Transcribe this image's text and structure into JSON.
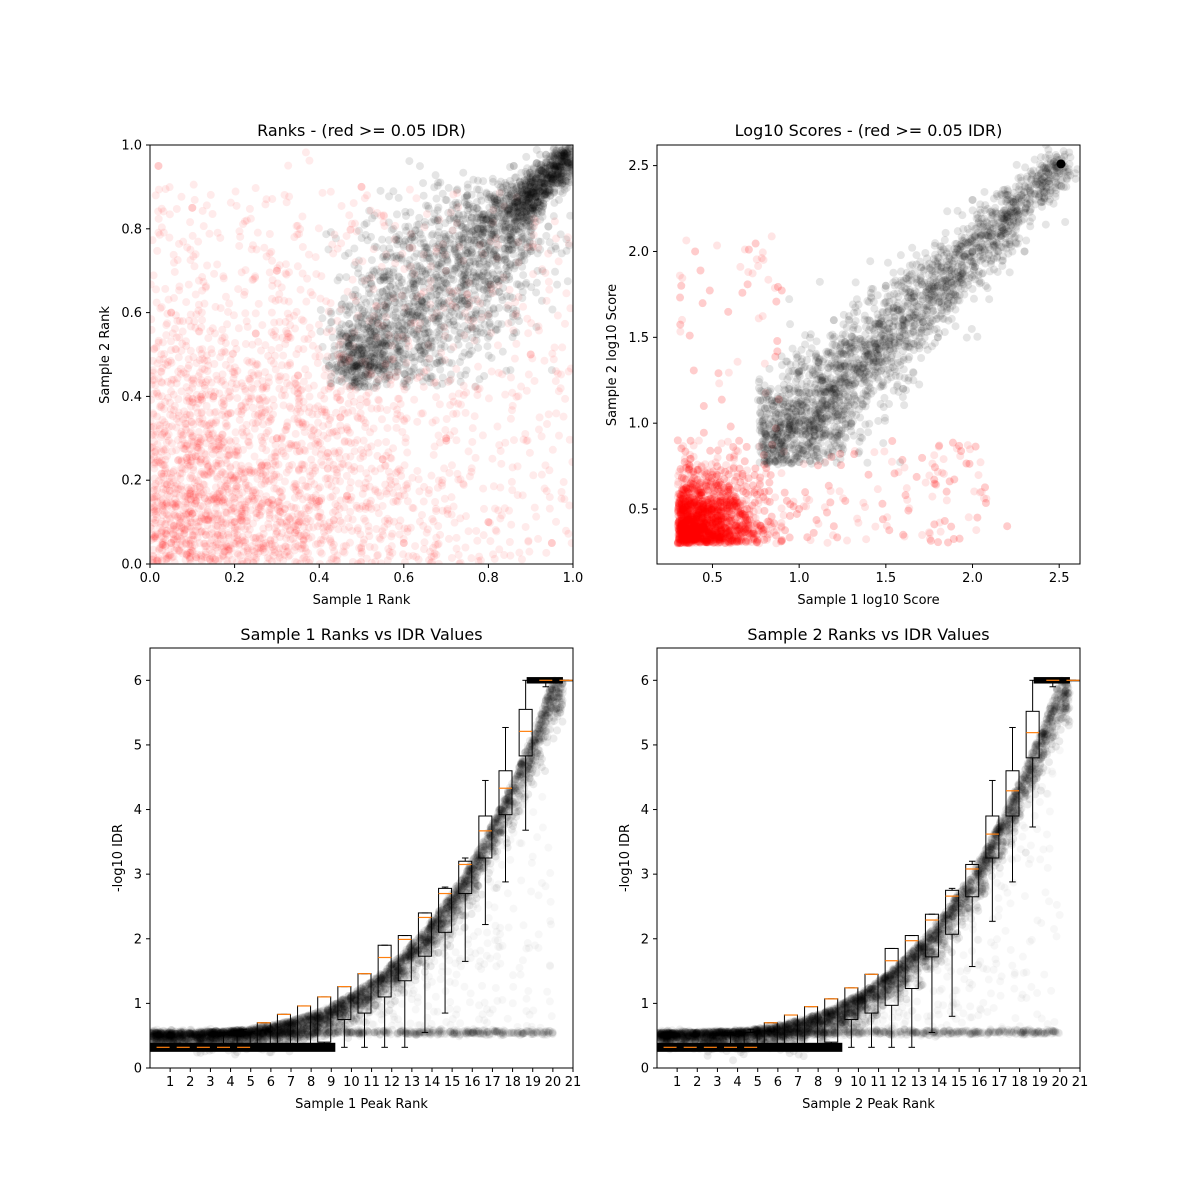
{
  "colors": {
    "pass": "#000000",
    "fail": "#ff0000",
    "median": "#ff7f0e",
    "frame": "#000000"
  },
  "chart_data": [
    {
      "id": "ranks",
      "type": "scatter",
      "title": "Ranks - (red >= 0.05 IDR)",
      "xlabel": "Sample 1 Rank",
      "ylabel": "Sample 2 Rank",
      "xlim": [
        0,
        1
      ],
      "ylim": [
        0,
        1
      ],
      "xticks": [
        0.0,
        0.2,
        0.4,
        0.6,
        0.8,
        1.0
      ],
      "yticks": [
        0.0,
        0.2,
        0.4,
        0.6,
        0.8,
        1.0
      ],
      "xticklabels": [
        "0.0",
        "0.2",
        "0.4",
        "0.6",
        "0.8",
        "1.0"
      ],
      "yticklabels": [
        "0.0",
        "0.2",
        "0.4",
        "0.6",
        "0.8",
        "1.0"
      ],
      "series": [
        {
          "color": "#ff0000",
          "points": [
            [
              0.05,
              0.05
            ],
            [
              0.1,
              0.12
            ],
            [
              0.2,
              0.1
            ],
            [
              0.3,
              0.3
            ],
            [
              0.15,
              0.4
            ],
            [
              0.4,
              0.15
            ],
            [
              0.05,
              0.6
            ],
            [
              0.6,
              0.05
            ],
            [
              0.25,
              0.55
            ],
            [
              0.55,
              0.25
            ],
            [
              0.35,
              0.45
            ],
            [
              0.1,
              0.85
            ],
            [
              0.8,
              0.1
            ],
            [
              0.7,
              0.3
            ],
            [
              0.3,
              0.7
            ],
            [
              0.9,
              0.5
            ],
            [
              0.5,
              0.9
            ],
            [
              0.02,
              0.95
            ],
            [
              0.95,
              0.05
            ],
            [
              0.45,
              0.35
            ]
          ]
        },
        {
          "color": "#000000",
          "points": [
            [
              0.5,
              0.45
            ],
            [
              0.55,
              0.5
            ],
            [
              0.6,
              0.6
            ],
            [
              0.7,
              0.7
            ],
            [
              0.8,
              0.8
            ],
            [
              0.9,
              0.9
            ],
            [
              0.98,
              0.98
            ],
            [
              0.65,
              0.55
            ],
            [
              0.55,
              0.65
            ],
            [
              0.75,
              0.62
            ],
            [
              0.62,
              0.78
            ],
            [
              0.85,
              0.75
            ],
            [
              0.75,
              0.88
            ],
            [
              0.93,
              0.86
            ],
            [
              0.86,
              0.95
            ],
            [
              0.47,
              0.52
            ],
            [
              0.52,
              0.47
            ],
            [
              0.68,
              0.82
            ],
            [
              0.82,
              0.68
            ],
            [
              0.95,
              0.93
            ]
          ]
        }
      ]
    },
    {
      "id": "scores",
      "type": "scatter",
      "title": "Log10 Scores - (red >= 0.05 IDR)",
      "xlabel": "Sample 1 log10 Score",
      "ylabel": "Sample 2 log10 Score",
      "xlim": [
        0.18,
        2.62
      ],
      "ylim": [
        0.18,
        2.62
      ],
      "xticks": [
        0.5,
        1.0,
        1.5,
        2.0,
        2.5
      ],
      "yticks": [
        0.5,
        1.0,
        1.5,
        2.0,
        2.5
      ],
      "xticklabels": [
        "0.5",
        "1.0",
        "1.5",
        "2.0",
        "2.5"
      ],
      "yticklabels": [
        "0.5",
        "1.0",
        "1.5",
        "2.0",
        "2.5"
      ],
      "series": [
        {
          "color": "#ff0000",
          "points": [
            [
              0.3,
              0.3
            ],
            [
              0.4,
              0.35
            ],
            [
              0.5,
              0.45
            ],
            [
              0.35,
              0.6
            ],
            [
              0.6,
              0.35
            ],
            [
              0.7,
              0.5
            ],
            [
              0.5,
              0.7
            ],
            [
              0.3,
              0.9
            ],
            [
              0.9,
              0.32
            ],
            [
              1.0,
              0.5
            ],
            [
              0.45,
              1.1
            ],
            [
              1.2,
              0.4
            ],
            [
              0.32,
              1.8
            ],
            [
              1.6,
              0.35
            ],
            [
              0.8,
              0.6
            ],
            [
              0.6,
              0.8
            ],
            [
              0.4,
              2.0
            ],
            [
              2.2,
              0.4
            ],
            [
              0.55,
              0.55
            ],
            [
              1.4,
              0.7
            ]
          ]
        },
        {
          "color": "#000000",
          "points": [
            [
              0.8,
              0.78
            ],
            [
              0.9,
              0.9
            ],
            [
              1.0,
              1.0
            ],
            [
              1.2,
              1.2
            ],
            [
              1.4,
              1.4
            ],
            [
              1.6,
              1.6
            ],
            [
              1.8,
              1.8
            ],
            [
              2.0,
              2.0
            ],
            [
              2.2,
              2.2
            ],
            [
              2.51,
              2.51
            ],
            [
              1.0,
              1.3
            ],
            [
              1.3,
              1.0
            ],
            [
              1.2,
              1.6
            ],
            [
              1.6,
              1.2
            ],
            [
              1.5,
              1.8
            ],
            [
              1.8,
              1.5
            ],
            [
              0.85,
              1.1
            ],
            [
              1.1,
              0.85
            ],
            [
              2.0,
              2.3
            ],
            [
              2.3,
              2.0
            ]
          ]
        }
      ]
    },
    {
      "id": "s1idr",
      "type": "scatter",
      "title": "Sample 1 Ranks vs IDR Values",
      "xlabel": "Sample 1 Peak Rank",
      "ylabel": "-log10 IDR",
      "xlim": [
        0,
        21
      ],
      "ylim": [
        0,
        6.5
      ],
      "xticks": [
        1,
        2,
        3,
        4,
        5,
        6,
        7,
        8,
        9,
        10,
        11,
        12,
        13,
        14,
        15,
        16,
        17,
        18,
        19,
        20,
        21
      ],
      "yticks": [
        0,
        1,
        2,
        3,
        4,
        5,
        6
      ],
      "xticklabels": [
        "1",
        "2",
        "3",
        "4",
        "5",
        "6",
        "7",
        "8",
        "9",
        "10",
        "11",
        "12",
        "13",
        "14",
        "15",
        "16",
        "17",
        "18",
        "19",
        "20",
        "21"
      ],
      "yticklabels": [
        "0",
        "1",
        "2",
        "3",
        "4",
        "5",
        "6"
      ],
      "boxes": [
        {
          "pos": 1,
          "q1": 0.32,
          "med": 0.32,
          "q3": 0.32,
          "lo": 0.32,
          "hi": 0.32
        },
        {
          "pos": 2,
          "q1": 0.32,
          "med": 0.32,
          "q3": 0.32,
          "lo": 0.32,
          "hi": 0.32
        },
        {
          "pos": 3,
          "q1": 0.32,
          "med": 0.32,
          "q3": 0.32,
          "lo": 0.32,
          "hi": 0.32
        },
        {
          "pos": 4,
          "q1": 0.32,
          "med": 0.32,
          "q3": 0.32,
          "lo": 0.32,
          "hi": 0.55
        },
        {
          "pos": 5,
          "q1": 0.32,
          "med": 0.32,
          "q3": 0.55,
          "lo": 0.32,
          "hi": 0.6
        },
        {
          "pos": 6,
          "q1": 0.32,
          "med": 0.7,
          "q3": 0.7,
          "lo": 0.32,
          "hi": 0.7
        },
        {
          "pos": 7,
          "q1": 0.32,
          "med": 0.83,
          "q3": 0.83,
          "lo": 0.32,
          "hi": 0.83
        },
        {
          "pos": 8,
          "q1": 0.32,
          "med": 0.96,
          "q3": 0.96,
          "lo": 0.32,
          "hi": 0.96
        },
        {
          "pos": 9,
          "q1": 0.4,
          "med": 1.1,
          "q3": 1.1,
          "lo": 0.32,
          "hi": 1.1
        },
        {
          "pos": 10,
          "q1": 0.75,
          "med": 1.26,
          "q3": 1.26,
          "lo": 0.32,
          "hi": 1.26
        },
        {
          "pos": 11,
          "q1": 0.85,
          "med": 1.46,
          "q3": 1.46,
          "lo": 0.32,
          "hi": 1.46
        },
        {
          "pos": 12,
          "q1": 1.1,
          "med": 1.71,
          "q3": 1.9,
          "lo": 0.32,
          "hi": 1.9
        },
        {
          "pos": 13,
          "q1": 1.35,
          "med": 1.99,
          "q3": 2.05,
          "lo": 0.32,
          "hi": 2.05
        },
        {
          "pos": 14,
          "q1": 1.73,
          "med": 2.33,
          "q3": 2.4,
          "lo": 0.55,
          "hi": 2.4
        },
        {
          "pos": 15,
          "q1": 2.1,
          "med": 2.7,
          "q3": 2.78,
          "lo": 0.85,
          "hi": 2.8
        },
        {
          "pos": 16,
          "q1": 2.7,
          "med": 3.15,
          "q3": 3.2,
          "lo": 1.65,
          "hi": 3.25
        },
        {
          "pos": 17,
          "q1": 3.25,
          "med": 3.67,
          "q3": 3.9,
          "lo": 2.22,
          "hi": 4.45
        },
        {
          "pos": 18,
          "q1": 3.92,
          "med": 4.33,
          "q3": 4.6,
          "lo": 2.88,
          "hi": 5.27
        },
        {
          "pos": 19,
          "q1": 4.83,
          "med": 5.21,
          "q3": 5.55,
          "lo": 3.68,
          "hi": 6.0
        },
        {
          "pos": 20,
          "q1": 5.97,
          "med": 6.0,
          "q3": 6.03,
          "lo": 5.9,
          "hi": 6.03
        },
        {
          "pos": 21,
          "q1": 6.0,
          "med": 6.0,
          "q3": 6.0,
          "lo": 6.0,
          "hi": 6.0
        }
      ]
    },
    {
      "id": "s2idr",
      "type": "scatter",
      "title": "Sample 2 Ranks vs IDR Values",
      "xlabel": "Sample 2 Peak Rank",
      "ylabel": "-log10 IDR",
      "xlim": [
        0,
        21
      ],
      "ylim": [
        0,
        6.5
      ],
      "xticks": [
        1,
        2,
        3,
        4,
        5,
        6,
        7,
        8,
        9,
        10,
        11,
        12,
        13,
        14,
        15,
        16,
        17,
        18,
        19,
        20,
        21
      ],
      "yticks": [
        0,
        1,
        2,
        3,
        4,
        5,
        6
      ],
      "xticklabels": [
        "1",
        "2",
        "3",
        "4",
        "5",
        "6",
        "7",
        "8",
        "9",
        "10",
        "11",
        "12",
        "13",
        "14",
        "15",
        "16",
        "17",
        "18",
        "19",
        "20",
        "21"
      ],
      "yticklabels": [
        "0",
        "1",
        "2",
        "3",
        "4",
        "5",
        "6"
      ],
      "boxes": [
        {
          "pos": 1,
          "q1": 0.32,
          "med": 0.32,
          "q3": 0.32,
          "lo": 0.32,
          "hi": 0.32
        },
        {
          "pos": 2,
          "q1": 0.32,
          "med": 0.32,
          "q3": 0.32,
          "lo": 0.32,
          "hi": 0.32
        },
        {
          "pos": 3,
          "q1": 0.32,
          "med": 0.32,
          "q3": 0.32,
          "lo": 0.32,
          "hi": 0.32
        },
        {
          "pos": 4,
          "q1": 0.32,
          "med": 0.32,
          "q3": 0.32,
          "lo": 0.32,
          "hi": 0.55
        },
        {
          "pos": 5,
          "q1": 0.32,
          "med": 0.32,
          "q3": 0.55,
          "lo": 0.32,
          "hi": 0.6
        },
        {
          "pos": 6,
          "q1": 0.32,
          "med": 0.7,
          "q3": 0.7,
          "lo": 0.32,
          "hi": 0.7
        },
        {
          "pos": 7,
          "q1": 0.32,
          "med": 0.82,
          "q3": 0.82,
          "lo": 0.32,
          "hi": 0.82
        },
        {
          "pos": 8,
          "q1": 0.32,
          "med": 0.95,
          "q3": 0.95,
          "lo": 0.32,
          "hi": 0.95
        },
        {
          "pos": 9,
          "q1": 0.4,
          "med": 1.07,
          "q3": 1.07,
          "lo": 0.32,
          "hi": 1.07
        },
        {
          "pos": 10,
          "q1": 0.75,
          "med": 1.24,
          "q3": 1.24,
          "lo": 0.32,
          "hi": 1.24
        },
        {
          "pos": 11,
          "q1": 0.85,
          "med": 1.45,
          "q3": 1.45,
          "lo": 0.32,
          "hi": 1.45
        },
        {
          "pos": 12,
          "q1": 0.97,
          "med": 1.66,
          "q3": 1.85,
          "lo": 0.32,
          "hi": 1.85
        },
        {
          "pos": 13,
          "q1": 1.23,
          "med": 1.97,
          "q3": 2.05,
          "lo": 0.32,
          "hi": 2.05
        },
        {
          "pos": 14,
          "q1": 1.72,
          "med": 2.29,
          "q3": 2.38,
          "lo": 0.55,
          "hi": 2.38
        },
        {
          "pos": 15,
          "q1": 2.07,
          "med": 2.66,
          "q3": 2.75,
          "lo": 0.8,
          "hi": 2.78
        },
        {
          "pos": 16,
          "q1": 2.65,
          "med": 3.08,
          "q3": 3.15,
          "lo": 1.57,
          "hi": 3.2
        },
        {
          "pos": 17,
          "q1": 3.25,
          "med": 3.62,
          "q3": 3.9,
          "lo": 2.27,
          "hi": 4.45
        },
        {
          "pos": 18,
          "q1": 3.9,
          "med": 4.29,
          "q3": 4.6,
          "lo": 2.88,
          "hi": 5.27
        },
        {
          "pos": 19,
          "q1": 4.8,
          "med": 5.19,
          "q3": 5.52,
          "lo": 3.73,
          "hi": 6.0
        },
        {
          "pos": 20,
          "q1": 5.97,
          "med": 6.0,
          "q3": 6.03,
          "lo": 5.9,
          "hi": 6.03
        },
        {
          "pos": 21,
          "q1": 6.0,
          "med": 6.0,
          "q3": 6.0,
          "lo": 6.0,
          "hi": 6.0
        }
      ]
    }
  ]
}
